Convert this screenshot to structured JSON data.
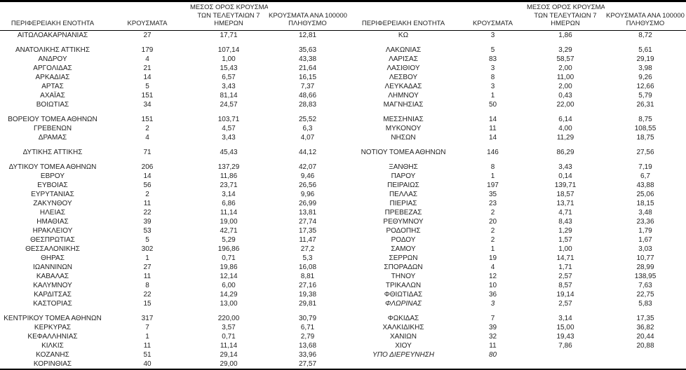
{
  "table": {
    "header_cols": [
      {
        "key": "region",
        "lines": [
          "ΠΕΡΙΦΕΡΕΙΑΚΗ ΕΝΟΤΗΤΑ"
        ]
      },
      {
        "key": "cases",
        "lines": [
          "ΚΡΟΥΣΜΑΤΑ"
        ]
      },
      {
        "key": "avg7",
        "lines": [
          "ΜΕΣΟΣ ΟΡΟΣ ΚΡΟΥΣΜΑΤΩΝ",
          "ΤΩΝ ΤΕΛΕΥΤΑΙΩΝ 7",
          "ΗΜΕΡΩΝ"
        ]
      },
      {
        "key": "per100k",
        "lines": [
          "ΚΡΟΥΣΜΑΤΑ ΑΝΑ 100000",
          "ΠΛΗΘΥΣΜΟ"
        ]
      }
    ],
    "rows": [
      {
        "l": [
          "ΑΙΤΩΛΟΑΚΑΡΝΑΝΙΑΣ",
          "27",
          "17,71",
          "12,81"
        ],
        "r": [
          "ΚΩ",
          "3",
          "1,86",
          "8,72"
        ]
      },
      {
        "spacer": true
      },
      {
        "l": [
          "ΑΝΑΤΟΛΙΚΗΣ ΑΤΤΙΚΗΣ",
          "179",
          "107,14",
          "35,63"
        ],
        "r": [
          "ΛΑΚΩΝΙΑΣ",
          "5",
          "3,29",
          "5,61"
        ]
      },
      {
        "l": [
          "ΑΝΔΡΟΥ",
          "4",
          "1,00",
          "43,38"
        ],
        "r": [
          "ΛΑΡΙΣΑΣ",
          "83",
          "58,57",
          "29,19"
        ]
      },
      {
        "l": [
          "ΑΡΓΟΛΙΔΑΣ",
          "21",
          "15,43",
          "21,64"
        ],
        "r": [
          "ΛΑΣΙΘΙΟΥ",
          "3",
          "2,00",
          "3,98"
        ]
      },
      {
        "l": [
          "ΑΡΚΑΔΙΑΣ",
          "14",
          "6,57",
          "16,15"
        ],
        "r": [
          "ΛΕΣΒΟΥ",
          "8",
          "11,00",
          "9,26"
        ]
      },
      {
        "l": [
          "ΑΡΤΑΣ",
          "5",
          "3,43",
          "7,37"
        ],
        "r": [
          "ΛΕΥΚΑΔΑΣ",
          "3",
          "2,00",
          "12,66"
        ]
      },
      {
        "l": [
          "ΑΧΑΪΑΣ",
          "151",
          "81,14",
          "48,66"
        ],
        "r": [
          "ΛΗΜΝΟΥ",
          "1",
          "0,43",
          "5,79"
        ]
      },
      {
        "l": [
          "ΒΟΙΩΤΙΑΣ",
          "34",
          "24,57",
          "28,83"
        ],
        "r": [
          "ΜΑΓΝΗΣΙΑΣ",
          "50",
          "22,00",
          "26,31"
        ]
      },
      {
        "spacer": true
      },
      {
        "l": [
          "ΒΟΡΕΙΟΥ ΤΟΜΕΑ ΑΘΗΝΩΝ",
          "151",
          "103,71",
          "25,52"
        ],
        "r": [
          "ΜΕΣΣΗΝΙΑΣ",
          "14",
          "6,14",
          "8,75"
        ]
      },
      {
        "l": [
          "ΓΡΕΒΕΝΩΝ",
          "2",
          "4,57",
          "6,3"
        ],
        "r": [
          "ΜΥΚΟΝΟΥ",
          "11",
          "4,00",
          "108,55"
        ]
      },
      {
        "l": [
          "ΔΡΑΜΑΣ",
          "4",
          "3,43",
          "4,07"
        ],
        "r": [
          "ΝΗΣΩΝ",
          "14",
          "11,29",
          "18,75"
        ]
      },
      {
        "spacer": true
      },
      {
        "l": [
          "ΔΥΤΙΚΗΣ ΑΤΤΙΚΗΣ",
          "71",
          "45,43",
          "44,12"
        ],
        "r": [
          "ΝΟΤΙΟΥ ΤΟΜΕΑ ΑΘΗΝΩΝ",
          "146",
          "86,29",
          "27,56"
        ]
      },
      {
        "spacer": true
      },
      {
        "l": [
          "ΔΥΤΙΚΟΥ ΤΟΜΕΑ ΑΘΗΝΩΝ",
          "206",
          "137,29",
          "42,07"
        ],
        "r": [
          "ΞΑΝΘΗΣ",
          "8",
          "3,43",
          "7,19"
        ]
      },
      {
        "l": [
          "ΕΒΡΟΥ",
          "14",
          "11,86",
          "9,46"
        ],
        "r": [
          "ΠΑΡΟΥ",
          "1",
          "0,14",
          "6,7"
        ]
      },
      {
        "l": [
          "ΕΥΒΟΙΑΣ",
          "56",
          "23,71",
          "26,56"
        ],
        "r": [
          "ΠΕΙΡΑΙΩΣ",
          "197",
          "139,71",
          "43,88"
        ]
      },
      {
        "l": [
          "ΕΥΡΥΤΑΝΙΑΣ",
          "2",
          "3,14",
          "9,96"
        ],
        "r": [
          "ΠΕΛΛΑΣ",
          "35",
          "18,57",
          "25,06"
        ]
      },
      {
        "l": [
          "ΖΑΚΥΝΘΟΥ",
          "11",
          "6,86",
          "26,99"
        ],
        "r": [
          "ΠΙΕΡΙΑΣ",
          "23",
          "13,71",
          "18,15"
        ]
      },
      {
        "l": [
          "ΗΛΕΙΑΣ",
          "22",
          "11,14",
          "13,81"
        ],
        "r": [
          "ΠΡΕΒΕΖΑΣ",
          "2",
          "4,71",
          "3,48"
        ]
      },
      {
        "l": [
          "ΗΜΑΘΙΑΣ",
          "39",
          "19,00",
          "27,74"
        ],
        "r": [
          "ΡΕΘΥΜΝΟΥ",
          "20",
          "8,43",
          "23,36"
        ]
      },
      {
        "l": [
          "ΗΡΑΚΛΕΙΟΥ",
          "53",
          "42,71",
          "17,35"
        ],
        "r": [
          "ΡΟΔΟΠΗΣ",
          "2",
          "1,29",
          "1,79"
        ]
      },
      {
        "l": [
          "ΘΕΣΠΡΩΤΙΑΣ",
          "5",
          "5,29",
          "11,47"
        ],
        "r": [
          "ΡΟΔΟΥ",
          "2",
          "1,57",
          "1,67"
        ]
      },
      {
        "l": [
          "ΘΕΣΣΑΛΟΝΙΚΗΣ",
          "302",
          "196,86",
          "27,2"
        ],
        "r": [
          "ΣΑΜΟΥ",
          "1",
          "1,00",
          "3,03"
        ]
      },
      {
        "l": [
          "ΘΗΡΑΣ",
          "1",
          "0,71",
          "5,3"
        ],
        "r": [
          "ΣΕΡΡΩΝ",
          "19",
          "14,71",
          "10,77"
        ]
      },
      {
        "l": [
          "ΙΩΑΝΝΙΝΩΝ",
          "27",
          "19,86",
          "16,08"
        ],
        "r": [
          "ΣΠΟΡΑΔΩΝ",
          "4",
          "1,71",
          "28,99"
        ]
      },
      {
        "l": [
          "ΚΑΒΑΛΑΣ",
          "11",
          "12,14",
          "8,81"
        ],
        "r": [
          "ΤΗΝΟΥ",
          "12",
          "2,57",
          "138,95"
        ]
      },
      {
        "l": [
          "ΚΑΛΥΜΝΟΥ",
          "8",
          "6,00",
          "27,16"
        ],
        "r": [
          "ΤΡΙΚΑΛΩΝ",
          "10",
          "8,57",
          "7,63"
        ]
      },
      {
        "l": [
          "ΚΑΡΔΙΤΣΑΣ",
          "22",
          "14,29",
          "19,38"
        ],
        "r": [
          "ΦΘΙΩΤΙΔΑΣ",
          "36",
          "19,14",
          "22,75"
        ]
      },
      {
        "l": [
          "ΚΑΣΤΟΡΙΑΣ",
          "15",
          "13,00",
          "29,81"
        ],
        "r": [
          "ΦΛΩΡΙΝΑΣ",
          "3",
          "2,57",
          "5,83"
        ],
        "ri": 2
      },
      {
        "spacer": true
      },
      {
        "l": [
          "ΚΕΝΤΡΙΚΟΥ ΤΟΜΕΑ ΑΘΗΝΩΝ",
          "317",
          "220,00",
          "30,79"
        ],
        "r": [
          "ΦΩΚΙΔΑΣ",
          "7",
          "3,14",
          "17,35"
        ]
      },
      {
        "l": [
          "ΚΕΡΚΥΡΑΣ",
          "7",
          "3,57",
          "6,71"
        ],
        "r": [
          "ΧΑΛΚΙΔΙΚΗΣ",
          "39",
          "15,00",
          "36,82"
        ]
      },
      {
        "l": [
          "ΚΕΦΑΛΛΗΝΙΑΣ",
          "1",
          "0,71",
          "2,79"
        ],
        "r": [
          "ΧΑΝΙΩΝ",
          "32",
          "19,43",
          "20,44"
        ]
      },
      {
        "l": [
          "ΚΙΛΚΙΣ",
          "11",
          "11,14",
          "13,68"
        ],
        "r": [
          "ΧΙΟΥ",
          "11",
          "7,86",
          "20,88"
        ]
      },
      {
        "l": [
          "ΚΟΖΑΝΗΣ",
          "51",
          "29,14",
          "33,96"
        ],
        "r": [
          "ΥΠΟ ΔΙΕΡΕΥΝΗΣΗ",
          "80",
          "",
          ""
        ],
        "ri": 2
      },
      {
        "l": [
          "ΚΟΡΙΝΘΙΑΣ",
          "40",
          "29,00",
          "27,57"
        ],
        "r": [
          "",
          "",
          "",
          ""
        ]
      }
    ],
    "colors": {
      "text": "#1f1f1f",
      "border": "#000000",
      "background": "#ffffff"
    }
  }
}
